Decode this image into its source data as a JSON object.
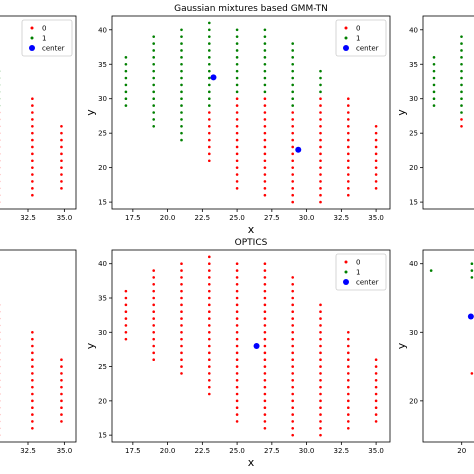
{
  "colors": {
    "cluster0": "#ff0000",
    "cluster1": "#008000",
    "center": "#0000ff"
  },
  "chart_data": [
    {
      "id": "top-left-partial",
      "type": "scatter",
      "title": "",
      "xlabel": "",
      "ylabel": "",
      "xlim": [
        30.3,
        35.8
      ],
      "ylim": [
        14.0,
        42.0
      ],
      "xticks": [
        "32.5",
        "35.0"
      ],
      "xtick_values": [
        32.5,
        35.0
      ],
      "yticks": [],
      "ytick_values": [],
      "legend": {
        "position": "top-right",
        "entries": [
          "0",
          "1",
          "center"
        ]
      },
      "columns": [
        {
          "x": 30.5,
          "y_min": 15,
          "y_max": 28,
          "cluster": "0"
        },
        {
          "x": 30.5,
          "y_min": 29,
          "y_max": 34,
          "cluster": "1"
        },
        {
          "x": 32.8,
          "y_min": 16,
          "y_max": 30,
          "cluster": "0"
        },
        {
          "x": 34.8,
          "y_min": 17,
          "y_max": 26,
          "cluster": "0"
        }
      ],
      "centers": []
    },
    {
      "id": "gmm-tn",
      "type": "scatter",
      "title": "Gaussian mixtures based GMM-TN",
      "xlabel": "x",
      "ylabel": "y",
      "xlim": [
        16,
        36
      ],
      "ylim": [
        14,
        42
      ],
      "xticks": [
        "17.5",
        "20.0",
        "22.5",
        "25.0",
        "27.5",
        "30.0",
        "32.5",
        "35.0"
      ],
      "xtick_values": [
        17.5,
        20.0,
        22.5,
        25.0,
        27.5,
        30.0,
        32.5,
        35.0
      ],
      "yticks": [
        "15",
        "20",
        "25",
        "30",
        "35",
        "40"
      ],
      "ytick_values": [
        15,
        20,
        25,
        30,
        35,
        40
      ],
      "legend": {
        "position": "top-right",
        "entries": [
          "0",
          "1",
          "center"
        ]
      },
      "columns": [
        {
          "x": 17,
          "y_min": 29,
          "y_max": 36,
          "cluster": "1"
        },
        {
          "x": 19,
          "y_min": 26,
          "y_max": 39,
          "cluster": "1"
        },
        {
          "x": 21,
          "y_min": 24,
          "y_max": 40,
          "cluster": "1"
        },
        {
          "x": 23,
          "y_min": 21,
          "y_max": 28,
          "cluster": "0"
        },
        {
          "x": 23,
          "y_min": 29,
          "y_max": 41,
          "cluster": "1"
        },
        {
          "x": 25,
          "y_min": 17,
          "y_max": 30,
          "cluster": "0"
        },
        {
          "x": 25,
          "y_min": 31,
          "y_max": 40,
          "cluster": "1"
        },
        {
          "x": 27,
          "y_min": 16,
          "y_max": 30,
          "cluster": "0"
        },
        {
          "x": 27,
          "y_min": 31,
          "y_max": 40,
          "cluster": "1"
        },
        {
          "x": 29,
          "y_min": 15,
          "y_max": 28,
          "cluster": "0"
        },
        {
          "x": 29,
          "y_min": 29,
          "y_max": 38,
          "cluster": "1"
        },
        {
          "x": 31,
          "y_min": 15,
          "y_max": 30,
          "cluster": "0"
        },
        {
          "x": 31,
          "y_min": 31,
          "y_max": 34,
          "cluster": "1"
        },
        {
          "x": 33,
          "y_min": 16,
          "y_max": 30,
          "cluster": "0"
        },
        {
          "x": 35,
          "y_min": 17,
          "y_max": 26,
          "cluster": "0"
        }
      ],
      "centers": [
        {
          "x": 23.3,
          "y": 33.1
        },
        {
          "x": 29.4,
          "y": 22.6
        }
      ]
    },
    {
      "id": "top-right-partial",
      "type": "scatter",
      "title": "",
      "xlabel": "",
      "ylabel": "y",
      "xlim": [
        16.2,
        20.2
      ],
      "ylim": [
        14.0,
        42.0
      ],
      "xticks": [],
      "xtick_values": [],
      "yticks": [
        "15",
        "20",
        "25",
        "30",
        "35",
        "40"
      ],
      "ytick_values": [
        15,
        20,
        25,
        30,
        35,
        40
      ],
      "legend": null,
      "columns": [
        {
          "x": 17,
          "y_min": 29,
          "y_max": 36,
          "cluster": "1"
        },
        {
          "x": 19,
          "y_min": 26,
          "y_max": 27,
          "cluster": "0"
        },
        {
          "x": 19,
          "y_min": 28,
          "y_max": 39,
          "cluster": "1"
        }
      ],
      "centers": []
    },
    {
      "id": "bottom-left-partial",
      "type": "scatter",
      "title": "",
      "xlabel": "",
      "ylabel": "",
      "xlim": [
        30.3,
        35.8
      ],
      "ylim": [
        14.0,
        42.0
      ],
      "xticks": [
        "32.5",
        "35.0"
      ],
      "xtick_values": [
        32.5,
        35.0
      ],
      "yticks": [],
      "ytick_values": [],
      "legend": null,
      "columns": [
        {
          "x": 30.5,
          "y_min": 15,
          "y_max": 34,
          "cluster": "0"
        },
        {
          "x": 32.8,
          "y_min": 16,
          "y_max": 30,
          "cluster": "0"
        },
        {
          "x": 34.8,
          "y_min": 17,
          "y_max": 26,
          "cluster": "0"
        }
      ],
      "centers": []
    },
    {
      "id": "optics",
      "type": "scatter",
      "title": "OPTICS",
      "xlabel": "x",
      "ylabel": "y",
      "xlim": [
        16,
        36
      ],
      "ylim": [
        14,
        42
      ],
      "xticks": [
        "17.5",
        "20.0",
        "22.5",
        "25.0",
        "27.5",
        "30.0",
        "32.5",
        "35.0"
      ],
      "xtick_values": [
        17.5,
        20.0,
        22.5,
        25.0,
        27.5,
        30.0,
        32.5,
        35.0
      ],
      "yticks": [
        "15",
        "20",
        "25",
        "30",
        "35",
        "40"
      ],
      "ytick_values": [
        15,
        20,
        25,
        30,
        35,
        40
      ],
      "legend": {
        "position": "top-right",
        "entries": [
          "0",
          "1",
          "center"
        ]
      },
      "columns": [
        {
          "x": 17,
          "y_min": 29,
          "y_max": 36,
          "cluster": "0"
        },
        {
          "x": 19,
          "y_min": 26,
          "y_max": 39,
          "cluster": "0"
        },
        {
          "x": 21,
          "y_min": 24,
          "y_max": 40,
          "cluster": "0"
        },
        {
          "x": 23,
          "y_min": 21,
          "y_max": 41,
          "cluster": "0"
        },
        {
          "x": 25,
          "y_min": 17,
          "y_max": 40,
          "cluster": "0"
        },
        {
          "x": 27,
          "y_min": 16,
          "y_max": 40,
          "cluster": "0"
        },
        {
          "x": 29,
          "y_min": 15,
          "y_max": 38,
          "cluster": "0"
        },
        {
          "x": 31,
          "y_min": 15,
          "y_max": 34,
          "cluster": "0"
        },
        {
          "x": 33,
          "y_min": 16,
          "y_max": 30,
          "cluster": "0"
        },
        {
          "x": 35,
          "y_min": 17,
          "y_max": 26,
          "cluster": "0"
        }
      ],
      "centers": [
        {
          "x": 26.4,
          "y": 28.0
        }
      ]
    },
    {
      "id": "bottom-right-partial",
      "type": "scatter",
      "title": "",
      "xlabel": "",
      "ylabel": "y",
      "xlim": [
        16.2,
        21.6
      ],
      "ylim": [
        14.0,
        42.0
      ],
      "xticks": [
        "20"
      ],
      "xtick_values": [
        20
      ],
      "yticks": [
        "20",
        "30",
        "40"
      ],
      "ytick_values": [
        20,
        30,
        40
      ],
      "legend": null,
      "columns": [
        {
          "x": 17,
          "y_min": 39,
          "y_max": 39,
          "cluster": "1"
        },
        {
          "x": 21,
          "y_min": 38,
          "y_max": 40,
          "cluster": "1"
        },
        {
          "x": 21,
          "y_min": 24,
          "y_max": 24,
          "cluster": "0"
        }
      ],
      "centers": [
        {
          "x": 20.9,
          "y": 32.3
        }
      ]
    }
  ]
}
